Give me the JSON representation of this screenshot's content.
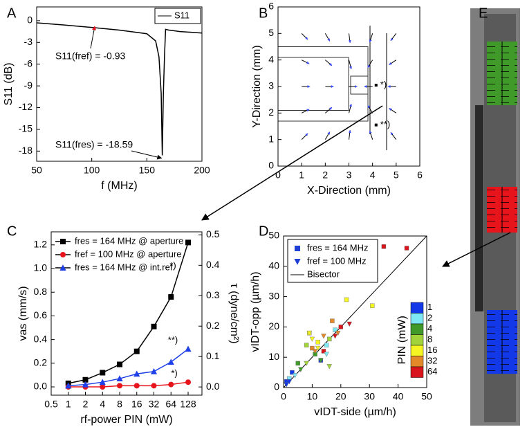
{
  "chart_data": [
    {
      "label": "A",
      "type": "line",
      "x_label": "f (MHz)",
      "y_label": "S11 (dB)",
      "xlim": [
        50,
        200
      ],
      "ylim": [
        -19.4,
        1.9
      ],
      "xticks": [
        50,
        100,
        150,
        200
      ],
      "yticks": [
        0,
        -3,
        -6,
        -9,
        -12,
        -15,
        -18
      ],
      "series": [
        {
          "name": "S11",
          "color": "#000000",
          "x": [
            50,
            75,
            100,
            125,
            150,
            158,
            161,
            163,
            164,
            165,
            166,
            167,
            170,
            180,
            190,
            200
          ],
          "values": [
            -0.3,
            -0.6,
            -0.93,
            -1.3,
            -1.8,
            -2.8,
            -5,
            -10,
            -18.59,
            -10,
            -5,
            -1.2,
            -1.3,
            -1.5,
            -1.6,
            -1.7
          ]
        }
      ],
      "annotations": [
        {
          "text": "S11(fref) = -0.93",
          "color": "#e8141c"
        },
        {
          "text": "S11(fres) = -18.59",
          "color": "#000000"
        }
      ]
    },
    {
      "label": "B",
      "type": "quiver",
      "x_label": "X-Direction (mm)",
      "y_label": "Y-Direction (mm)",
      "xlim": [
        0,
        6
      ],
      "ylim": [
        0,
        6
      ],
      "xticks": [
        0,
        1,
        2,
        3,
        4,
        5,
        6
      ],
      "yticks": [
        0,
        1,
        2,
        3,
        4,
        5,
        6
      ],
      "color": "#3b4cff",
      "vectors": {
        "x": [
          1,
          2,
          3,
          4,
          5,
          1,
          2,
          3,
          4,
          5,
          1,
          2,
          3,
          4,
          5,
          1,
          2,
          3,
          4,
          5,
          1,
          2,
          3,
          4,
          5
        ],
        "y": [
          1,
          1,
          1,
          1,
          1,
          2,
          2,
          2,
          2,
          2,
          3,
          3,
          3,
          3,
          3,
          4,
          4,
          4,
          4,
          4,
          5,
          5,
          5,
          5,
          5
        ],
        "u": [
          0.26,
          0.19,
          0.05,
          -0.12,
          -0.23,
          0.32,
          0.28,
          0.1,
          -0.2,
          -0.3,
          0.35,
          0.35,
          0.35,
          -0.35,
          -0.35,
          0.32,
          0.28,
          0.1,
          -0.2,
          -0.3,
          0.26,
          0.19,
          0.05,
          -0.12,
          -0.23
        ],
        "v": [
          0.23,
          0.29,
          0.35,
          0.33,
          0.27,
          0.14,
          0.21,
          0.34,
          0.29,
          0.18,
          0,
          0,
          0,
          0,
          0,
          -0.14,
          -0.21,
          -0.34,
          -0.29,
          -0.18,
          -0.23,
          -0.29,
          -0.35,
          -0.33,
          -0.27
        ]
      },
      "markers": [
        {
          "x": 4.15,
          "y": 3.05,
          "label": "*)"
        },
        {
          "x": 4.15,
          "y": 1.55,
          "label": "**)"
        }
      ]
    },
    {
      "label": "C",
      "type": "line_marker",
      "x_label": "rf-power PIN (mW)",
      "y_label": "vas (mm/s)",
      "y2_label": "τ (dyne/cm²)",
      "xscale": "log",
      "xlim": [
        0.5,
        224
      ],
      "ylim": [
        -0.07,
        1.31
      ],
      "y2lim": [
        -0.027,
        0.51
      ],
      "xticks": [
        0.5,
        1,
        2,
        4,
        8,
        16,
        32,
        64,
        128
      ],
      "yticks": [
        {
          "value": 0,
          "label": "0.0"
        },
        0.2,
        0.4,
        0.6,
        0.8,
        {
          "value": 1,
          "label": "1.0"
        },
        1.2
      ],
      "y2ticks": [
        {
          "value": 0,
          "label": "0.0"
        },
        0.1,
        0.2,
        0.3,
        0.4,
        0.5
      ],
      "x": [
        1,
        2,
        4,
        8,
        16,
        32,
        64,
        128
      ],
      "series": [
        {
          "name": "fres = 164 MHz @ aperture",
          "color": "#000000",
          "marker": "square",
          "values": [
            0.03,
            0.06,
            0.12,
            0.19,
            0.3,
            0.51,
            0.76,
            1.22
          ]
        },
        {
          "name": "fref = 100 MHz @ aperture",
          "color": "#e8141c",
          "marker": "circle",
          "values": [
            0,
            0,
            0,
            0.01,
            0.01,
            0.01,
            0.02,
            0.04
          ]
        },
        {
          "name": "fres = 164 MHz @ int.ref.",
          "color": "#1f3fe8",
          "marker": "triangle",
          "values": [
            0.01,
            0.02,
            0.04,
            0.07,
            0.11,
            0.13,
            0.21,
            0.32
          ]
        }
      ],
      "annotations": [
        "*)",
        "*)",
        "**)"
      ]
    },
    {
      "label": "D",
      "type": "scatter",
      "x_label": "vIDT-side (µm/h)",
      "y_label": "vIDT-opp (µm/h)",
      "xlim": [
        0,
        50
      ],
      "ylim": [
        0,
        50
      ],
      "xticks": [
        0,
        10,
        20,
        30,
        40,
        50
      ],
      "yticks": [
        0,
        10,
        20,
        30,
        40,
        50
      ],
      "series": [
        {
          "name": "fres = 164 MHz",
          "marker": "square",
          "color": "#1f3fd6",
          "x": [
            1,
            2,
            3,
            5,
            8,
            9,
            10,
            11,
            12,
            13,
            14,
            15,
            16,
            17,
            18,
            20,
            22,
            31,
            35,
            43
          ],
          "values": [
            2,
            3,
            5,
            8,
            14,
            18,
            13,
            11,
            15,
            9,
            12,
            14,
            16,
            22,
            19,
            20,
            29,
            27,
            46.5,
            46
          ],
          "power": [
            1,
            2,
            1,
            4,
            8,
            16,
            32,
            4,
            16,
            1,
            64,
            2,
            8,
            32,
            2,
            64,
            16,
            16,
            64,
            64
          ]
        },
        {
          "name": "fref = 100 MHz",
          "marker": "triangle",
          "color": "#1f3fd6",
          "x": [
            1,
            2,
            4,
            6,
            8,
            9,
            10,
            11,
            12,
            13,
            14,
            15,
            16,
            18,
            19,
            23
          ],
          "values": [
            1,
            2,
            4,
            6,
            8,
            18,
            16,
            12,
            13,
            9,
            17,
            11,
            7,
            17,
            18,
            21
          ],
          "power": [
            1,
            1,
            2,
            4,
            8,
            16,
            16,
            32,
            16,
            4,
            32,
            2,
            8,
            64,
            32,
            64
          ]
        }
      ],
      "bisector": {
        "name": "Bisector",
        "color": "#000000"
      },
      "colorbar": {
        "title": "PIN (mW)",
        "levels": [
          1,
          2,
          4,
          8,
          16,
          32,
          64
        ],
        "colors": [
          "#1238e8",
          "#7fe8f5",
          "#3f9a2a",
          "#a2d33a",
          "#f5f523",
          "#e3892a",
          "#d8141c"
        ]
      }
    },
    {
      "label": "E",
      "type": "image"
    }
  ]
}
